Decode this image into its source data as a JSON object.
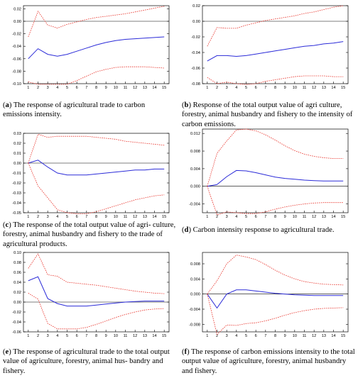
{
  "colors": {
    "response": "#2b2bd8",
    "bands": "#e8322a",
    "zero_line": "#000000",
    "frame": "#000000"
  },
  "chart_data": [
    {
      "type": "line",
      "panel_letter": "a",
      "caption_text": " The response of agricultural trade to carbon emissions intensity.",
      "x": [
        1,
        2,
        3,
        4,
        5,
        6,
        7,
        8,
        9,
        10,
        11,
        12,
        13,
        14,
        15
      ],
      "ylim": [
        -0.1,
        0.025
      ],
      "yticks": [
        0.02,
        0.0,
        -0.02,
        -0.04,
        -0.06,
        -0.08,
        -0.1
      ],
      "ytick_labels": [
        "0.02",
        "0.00",
        "-0.02",
        "-0.04",
        "-0.06",
        "-0.08",
        "-0.10"
      ],
      "xticks": [
        "1",
        "2",
        "3",
        "4",
        "5",
        "6",
        "7",
        "8",
        "9",
        "10",
        "11",
        "12",
        "13",
        "14",
        "15"
      ],
      "series": [
        {
          "role": "response",
          "style": "solid",
          "values": [
            -0.06,
            -0.044,
            -0.053,
            -0.056,
            -0.053,
            -0.048,
            -0.043,
            -0.038,
            -0.034,
            -0.031,
            -0.029,
            -0.028,
            -0.027,
            -0.026,
            -0.025
          ]
        },
        {
          "role": "upper",
          "style": "dashed",
          "values": [
            -0.025,
            0.016,
            -0.006,
            -0.011,
            -0.005,
            -0.001,
            0.003,
            0.006,
            0.008,
            0.01,
            0.012,
            0.015,
            0.018,
            0.021,
            0.024
          ]
        },
        {
          "role": "lower",
          "style": "dashed",
          "values": [
            -0.097,
            -0.101,
            -0.101,
            -0.101,
            -0.101,
            -0.095,
            -0.088,
            -0.081,
            -0.077,
            -0.074,
            -0.073,
            -0.073,
            -0.073,
            -0.074,
            -0.075
          ]
        }
      ]
    },
    {
      "type": "line",
      "panel_letter": "b",
      "caption_text": " Response of the total output value of agri culture, forestry, animal husbandry and fishery to the intensity of carbon emissions.",
      "x": [
        1,
        2,
        3,
        4,
        5,
        6,
        7,
        8,
        9,
        10,
        11,
        12,
        13,
        14,
        15
      ],
      "ylim": [
        -0.08,
        0.02
      ],
      "yticks": [
        0.02,
        0.0,
        -0.02,
        -0.04,
        -0.06,
        -0.08
      ],
      "ytick_labels": [
        "0.02",
        "0.00",
        "-0.02",
        "-0.04",
        "-0.06",
        "-0.08"
      ],
      "xticks": [
        "1",
        "2",
        "3",
        "4",
        "5",
        "6",
        "7",
        "8",
        "9",
        "10",
        "11",
        "12",
        "13",
        "14",
        "15"
      ],
      "series": [
        {
          "role": "response",
          "style": "solid",
          "values": [
            -0.051,
            -0.044,
            -0.044,
            -0.045,
            -0.044,
            -0.042,
            -0.04,
            -0.038,
            -0.036,
            -0.034,
            -0.032,
            -0.031,
            -0.029,
            -0.028,
            -0.026
          ]
        },
        {
          "role": "upper",
          "style": "dashed",
          "values": [
            -0.032,
            -0.008,
            -0.009,
            -0.009,
            -0.005,
            -0.002,
            0.001,
            0.003,
            0.005,
            0.007,
            0.01,
            0.012,
            0.015,
            0.018,
            0.02
          ]
        },
        {
          "role": "lower",
          "style": "dashed",
          "values": [
            -0.072,
            -0.08,
            -0.078,
            -0.08,
            -0.081,
            -0.08,
            -0.077,
            -0.075,
            -0.073,
            -0.071,
            -0.07,
            -0.07,
            -0.07,
            -0.071,
            -0.071
          ]
        }
      ]
    },
    {
      "type": "line",
      "panel_letter": "c",
      "caption_text": " The response of the total output value of agri- culture, forestry, animal husbandry and fishery to the trade of agricultural products.",
      "x": [
        1,
        2,
        3,
        4,
        5,
        6,
        7,
        8,
        9,
        10,
        11,
        12,
        13,
        14,
        15
      ],
      "ylim": [
        -0.05,
        0.03
      ],
      "yticks": [
        0.03,
        0.02,
        0.01,
        0.0,
        -0.01,
        -0.02,
        -0.03,
        -0.04,
        -0.05
      ],
      "ytick_labels": [
        "0.03",
        "0.02",
        "0.01",
        "0.00",
        "-0.01",
        "-0.02",
        "-0.03",
        "-0.04",
        "-0.05"
      ],
      "xticks": [
        "1",
        "2",
        "3",
        "4",
        "5",
        "6",
        "7",
        "8",
        "9",
        "10",
        "11",
        "12",
        "13",
        "14",
        "15"
      ],
      "series": [
        {
          "role": "response",
          "style": "solid",
          "values": [
            0.0,
            0.003,
            -0.004,
            -0.01,
            -0.012,
            -0.012,
            -0.012,
            -0.011,
            -0.01,
            -0.009,
            -0.008,
            -0.007,
            -0.007,
            -0.006,
            -0.006
          ]
        },
        {
          "role": "upper",
          "style": "dashed",
          "values": [
            0.0,
            0.029,
            0.026,
            0.027,
            0.027,
            0.027,
            0.027,
            0.026,
            0.025,
            0.024,
            0.022,
            0.021,
            0.02,
            0.019,
            0.018
          ]
        },
        {
          "role": "lower",
          "style": "dashed",
          "values": [
            0.0,
            -0.023,
            -0.035,
            -0.047,
            -0.05,
            -0.051,
            -0.051,
            -0.049,
            -0.046,
            -0.043,
            -0.04,
            -0.037,
            -0.035,
            -0.033,
            -0.032
          ]
        }
      ]
    },
    {
      "type": "line",
      "panel_letter": "d",
      "caption_text": " Carbon intensity response to agricultural trade.",
      "x": [
        1,
        2,
        3,
        4,
        5,
        6,
        7,
        8,
        9,
        10,
        11,
        12,
        13,
        14,
        15
      ],
      "ylim": [
        -0.006,
        0.013
      ],
      "yticks": [
        0.012,
        0.008,
        0.004,
        0.0,
        -0.004
      ],
      "ytick_labels": [
        "0.012",
        "0.008",
        "0.004",
        "0.000",
        "-0.004"
      ],
      "xticks": [
        "1",
        "2",
        "3",
        "4",
        "5",
        "6",
        "7",
        "8",
        "9",
        "10",
        "11",
        "12",
        "13",
        "14",
        "15"
      ],
      "series": [
        {
          "role": "response",
          "style": "solid",
          "values": [
            0.0,
            0.0004,
            0.0022,
            0.0036,
            0.0035,
            0.0031,
            0.0026,
            0.0021,
            0.0018,
            0.0016,
            0.0014,
            0.0013,
            0.0012,
            0.0012,
            0.0012
          ]
        },
        {
          "role": "upper",
          "style": "dashed",
          "values": [
            0.0,
            0.0075,
            0.0103,
            0.0128,
            0.013,
            0.0126,
            0.0117,
            0.0105,
            0.0092,
            0.0081,
            0.0073,
            0.0068,
            0.0065,
            0.0063,
            0.0063
          ]
        },
        {
          "role": "lower",
          "style": "dashed",
          "values": [
            0.0,
            -0.0065,
            -0.0058,
            -0.006,
            -0.0062,
            -0.0062,
            -0.0058,
            -0.0052,
            -0.0047,
            -0.0043,
            -0.004,
            -0.0038,
            -0.0037,
            -0.0037,
            -0.0037
          ]
        }
      ]
    },
    {
      "type": "line",
      "panel_letter": "e",
      "caption_text": " The response of agricultural trade to the total output value of agriculture, forestry, animal hus- bandry and fishery.",
      "x": [
        1,
        2,
        3,
        4,
        5,
        6,
        7,
        8,
        9,
        10,
        11,
        12,
        13,
        14,
        15
      ],
      "ylim": [
        -0.06,
        0.1
      ],
      "yticks": [
        0.1,
        0.08,
        0.06,
        0.04,
        0.02,
        0.0,
        -0.02,
        -0.04,
        -0.06
      ],
      "ytick_labels": [
        "0.10",
        "0.08",
        "0.06",
        "0.04",
        "0.02",
        "0.00",
        "-0.02",
        "-0.04",
        "-0.06"
      ],
      "xticks": [
        "1",
        "2",
        "3",
        "4",
        "5",
        "6",
        "7",
        "8",
        "9",
        "10",
        "11",
        "12",
        "13",
        "14",
        "15"
      ],
      "series": [
        {
          "role": "response",
          "style": "solid",
          "values": [
            0.043,
            0.051,
            0.007,
            -0.003,
            -0.008,
            -0.008,
            -0.008,
            -0.006,
            -0.004,
            -0.002,
            0.0,
            0.001,
            0.002,
            0.002,
            0.002
          ]
        },
        {
          "role": "upper",
          "style": "dashed",
          "values": [
            0.068,
            0.097,
            0.055,
            0.052,
            0.04,
            0.038,
            0.036,
            0.034,
            0.031,
            0.028,
            0.025,
            0.022,
            0.02,
            0.018,
            0.017
          ]
        },
        {
          "role": "lower",
          "style": "dashed",
          "values": [
            0.018,
            0.006,
            -0.043,
            -0.054,
            -0.054,
            -0.054,
            -0.051,
            -0.045,
            -0.038,
            -0.031,
            -0.025,
            -0.02,
            -0.016,
            -0.014,
            -0.013
          ]
        }
      ]
    },
    {
      "type": "line",
      "panel_letter": "f",
      "caption_text": " The response of carbon emissions intensity to the total output value of agriculture, forestry, animal husbandry and fishery.",
      "x": [
        1,
        2,
        3,
        4,
        5,
        6,
        7,
        8,
        9,
        10,
        11,
        12,
        13,
        14,
        15
      ],
      "ylim": [
        -0.01,
        0.011
      ],
      "yticks": [
        0.008,
        0.004,
        0.0,
        -0.004,
        -0.008
      ],
      "ytick_labels": [
        "0.008",
        "0.004",
        "0.000",
        "-0.004",
        "-0.008"
      ],
      "xticks": [
        "1",
        "2",
        "3",
        "4",
        "5",
        "6",
        "7",
        "8",
        "9",
        "10",
        "11",
        "12",
        "13",
        "14",
        "15"
      ],
      "series": [
        {
          "role": "response",
          "style": "solid",
          "values": [
            0.0,
            -0.0037,
            0.0,
            0.0011,
            0.0011,
            0.0008,
            0.0005,
            0.0002,
            0.0,
            -0.0002,
            -0.0003,
            -0.0004,
            -0.0004,
            -0.0004,
            -0.0004
          ]
        },
        {
          "role": "upper",
          "style": "dashed",
          "values": [
            0.0,
            0.0035,
            0.008,
            0.0103,
            0.0098,
            0.0091,
            0.0078,
            0.0063,
            0.005,
            0.004,
            0.0033,
            0.0029,
            0.0026,
            0.0025,
            0.0024
          ]
        },
        {
          "role": "lower",
          "style": "dashed",
          "values": [
            0.0,
            -0.0107,
            -0.0082,
            -0.0083,
            -0.0078,
            -0.0076,
            -0.0071,
            -0.0064,
            -0.0056,
            -0.0049,
            -0.0044,
            -0.004,
            -0.0038,
            -0.0037,
            -0.0036
          ]
        }
      ]
    }
  ]
}
